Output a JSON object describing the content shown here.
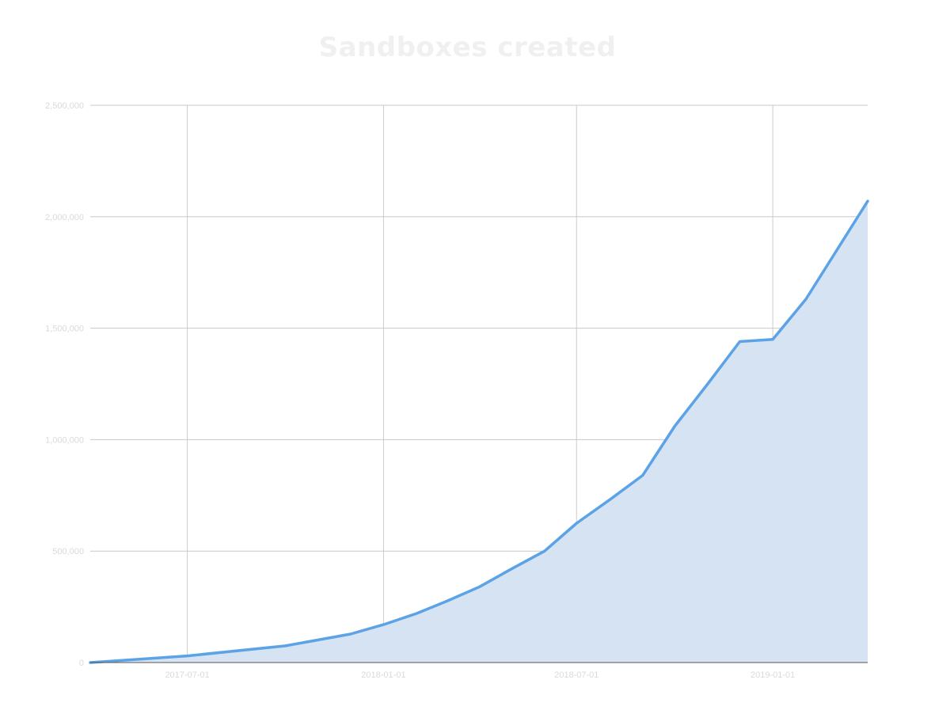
{
  "chart_data": {
    "type": "area",
    "title": "Sandboxes created",
    "xlabel": "",
    "ylabel": "",
    "x_start": "2017-04-01",
    "x_end": "2019-03-31",
    "ylim": [
      0,
      2500000
    ],
    "y_ticks": [
      {
        "value": 0,
        "label": "0"
      },
      {
        "value": 500000,
        "label": "500,000"
      },
      {
        "value": 1000000,
        "label": "1,000,000"
      },
      {
        "value": 1500000,
        "label": "1,500,000"
      },
      {
        "value": 2000000,
        "label": "2,000,000"
      },
      {
        "value": 2500000,
        "label": "2,500,000"
      }
    ],
    "x_ticks": [
      {
        "value": "2017-07-01",
        "label": "2017-07-01"
      },
      {
        "value": "2018-01-01",
        "label": "2018-01-01"
      },
      {
        "value": "2018-07-01",
        "label": "2018-07-01"
      },
      {
        "value": "2019-01-01",
        "label": "2019-01-01"
      }
    ],
    "grid": true,
    "series": [
      {
        "color": "#5ba3e6",
        "fill": "#d5e3f2",
        "points": [
          {
            "x": "2017-04-01",
            "y": 0
          },
          {
            "x": "2017-07-01",
            "y": 30000
          },
          {
            "x": "2017-10-01",
            "y": 75000
          },
          {
            "x": "2017-12-01",
            "y": 128000
          },
          {
            "x": "2018-01-01",
            "y": 170000
          },
          {
            "x": "2018-02-01",
            "y": 220000
          },
          {
            "x": "2018-03-01",
            "y": 275000
          },
          {
            "x": "2018-04-01",
            "y": 340000
          },
          {
            "x": "2018-05-01",
            "y": 420000
          },
          {
            "x": "2018-06-01",
            "y": 500000
          },
          {
            "x": "2018-07-01",
            "y": 625000
          },
          {
            "x": "2018-08-01",
            "y": 730000
          },
          {
            "x": "2018-09-01",
            "y": 840000
          },
          {
            "x": "2018-10-01",
            "y": 1060000
          },
          {
            "x": "2018-11-01",
            "y": 1250000
          },
          {
            "x": "2018-12-01",
            "y": 1440000
          },
          {
            "x": "2019-01-01",
            "y": 1450000
          },
          {
            "x": "2019-02-01",
            "y": 1630000
          },
          {
            "x": "2019-03-31",
            "y": 2070000
          }
        ]
      }
    ]
  }
}
